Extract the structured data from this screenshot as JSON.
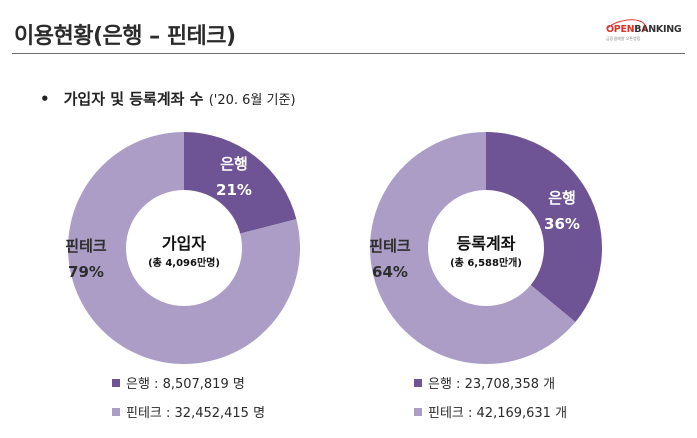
{
  "page": {
    "title": "이용현황(은행 – 핀테크)",
    "subtitle_bullet": "•",
    "subtitle": "가입자 및 등록계좌 수",
    "subtitle_date": "('20. 6월 기준)"
  },
  "logo": {
    "open": "OPEN",
    "banking": "BANKING",
    "sub": "금융결제원 오픈뱅킹",
    "brand_color": "#e0332b"
  },
  "colors": {
    "bank": "#6e5494",
    "fintech": "#ab9dc6"
  },
  "chart_data": [
    {
      "type": "pie",
      "donut": true,
      "title": "가입자",
      "subtitle": "(총 4,096만명)",
      "series": [
        {
          "name": "은행",
          "percent_label": "21%",
          "value": 21
        },
        {
          "name": "핀테크",
          "percent_label": "79%",
          "value": 79
        }
      ],
      "legend": [
        {
          "name": "은행",
          "text": "은행 : 8,507,819 명"
        },
        {
          "name": "핀테크",
          "text": "핀테크 : 32,452,415 명"
        }
      ]
    },
    {
      "type": "pie",
      "donut": true,
      "title": "등록계좌",
      "subtitle": "(총 6,588만개)",
      "series": [
        {
          "name": "은행",
          "percent_label": "36%",
          "value": 36
        },
        {
          "name": "핀테크",
          "percent_label": "64%",
          "value": 64
        }
      ],
      "legend": [
        {
          "name": "은행",
          "text": "은행 : 23,708,358 개"
        },
        {
          "name": "핀테크",
          "text": "핀테크 : 42,169,631 개"
        }
      ]
    }
  ]
}
